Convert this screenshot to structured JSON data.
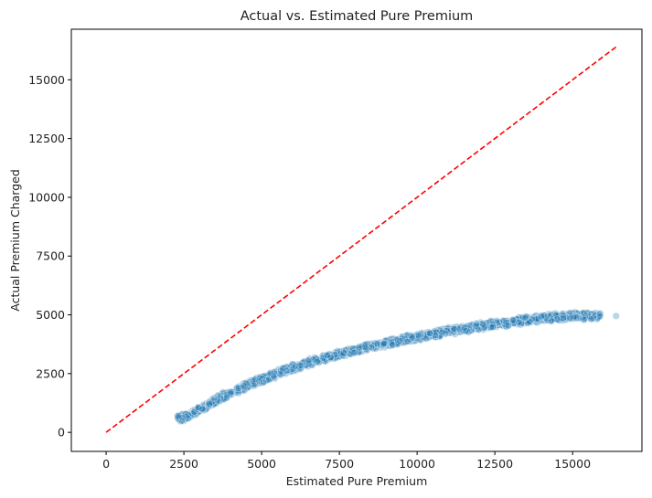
{
  "chart_data": {
    "type": "scatter",
    "title": "Actual vs. Estimated Pure Premium",
    "xlabel": "Estimated Pure Premium",
    "ylabel": "Actual Premium Charged",
    "xlim": [
      -1120,
      17230
    ],
    "ylim": [
      -810,
      17150
    ],
    "xticks": [
      0,
      2500,
      5000,
      7500,
      10000,
      12500,
      15000
    ],
    "yticks": [
      0,
      2500,
      5000,
      7500,
      10000,
      12500,
      15000
    ],
    "grid": false,
    "legend": "none",
    "colors": {
      "points": "#1f77b4",
      "reference_line": "#ff0000"
    },
    "series": [
      {
        "kind": "scatter",
        "trend": {
          "x": [
            2300,
            2500,
            3000,
            3500,
            4000,
            5000,
            6000,
            7000,
            8000,
            9000,
            10000,
            11000,
            12000,
            13000,
            14000,
            15000,
            16000,
            16400
          ],
          "y": [
            600,
            620,
            950,
            1350,
            1700,
            2250,
            2750,
            3150,
            3500,
            3800,
            4050,
            4300,
            4500,
            4700,
            4850,
            4950,
            4980,
            4950
          ]
        },
        "spread": 150,
        "x_range": [
          2300,
          16400
        ]
      },
      {
        "kind": "line",
        "style": "dashed",
        "x": [
          0,
          16400
        ],
        "y": [
          0,
          16400
        ]
      }
    ]
  }
}
